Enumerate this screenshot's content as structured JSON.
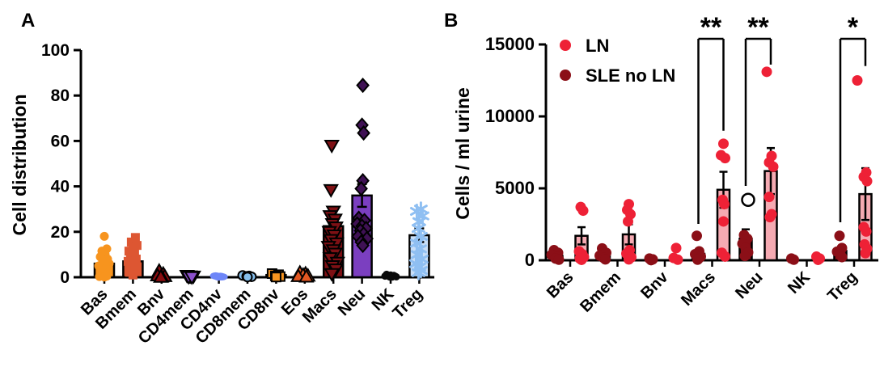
{
  "figure": {
    "background": "#FFFFFF",
    "panel_labels": [
      "A",
      "B"
    ]
  },
  "chart_data": [
    {
      "panel_label": "A",
      "type": "bar",
      "subtype": "bar-with-scatter-overlay",
      "title": "",
      "xlabel": "",
      "ylabel": "Cell distribution",
      "ylim": [
        0,
        100
      ],
      "yticks": [
        0,
        20,
        40,
        60,
        80,
        100
      ],
      "grid": false,
      "categories": [
        "Bas",
        "Bmem",
        "Bnv",
        "CD4mem",
        "CD4nv",
        "CD8mem",
        "CD8nv",
        "Eos",
        "Macs",
        "Neu",
        "NK",
        "Treg"
      ],
      "bar_values": [
        6,
        7,
        0.6,
        0.4,
        0.3,
        0.4,
        1,
        0.7,
        22.5,
        36,
        0.6,
        18.5
      ],
      "bar_errors": [
        1.8,
        1.6,
        0,
        0,
        0,
        0,
        0,
        0,
        3.5,
        5,
        0,
        3
      ],
      "bar_colors": [
        "#F7941E",
        "#DD5632",
        "#8B0E11",
        "#8C51CC",
        "#6E86F8",
        "#85BEEC",
        "#F79420",
        "#E25722",
        "#7E1014",
        "#7B3FC0",
        "#0A0A0A",
        "#C9DFF8"
      ],
      "marker_shapes": [
        "circle",
        "square",
        "triangle-up",
        "triangle-down",
        "ellipse",
        "circle",
        "square",
        "triangle-up",
        "triangle-down",
        "diamond",
        "circle-small",
        "snowflake"
      ],
      "marker_colors": [
        "#F7941E",
        "#DD5632",
        "#8B0E11",
        "#8C51CC",
        "#6E86F8",
        "#85BEEC",
        "#F79420",
        "#E25722",
        "#7E1014",
        "#3F1154",
        "#0A0A0A",
        "#8FBFF2"
      ],
      "marker_outlined": [
        false,
        false,
        true,
        true,
        false,
        true,
        true,
        true,
        true,
        true,
        false,
        false
      ],
      "scatter": [
        [
          [
            0,
            18
          ],
          [
            3,
            12.5
          ],
          [
            -3,
            11.5
          ],
          [
            1,
            10
          ],
          [
            -5,
            9
          ],
          [
            4,
            8
          ],
          [
            -2,
            7
          ],
          [
            6,
            6
          ],
          [
            -7,
            5
          ],
          [
            2,
            4
          ],
          [
            -4,
            3
          ],
          [
            5,
            2
          ],
          [
            -1,
            1.2
          ],
          [
            3,
            0.5
          ],
          [
            -6,
            0.3
          ],
          [
            0,
            0.1
          ]
        ],
        [
          [
            3,
            17.5
          ],
          [
            -2,
            15.5
          ],
          [
            5,
            14
          ],
          [
            0,
            13
          ],
          [
            -5,
            11.5
          ],
          [
            2,
            10.5
          ],
          [
            -3,
            9.5
          ],
          [
            4,
            8
          ],
          [
            -6,
            7
          ],
          [
            1,
            5.5
          ],
          [
            -2,
            4
          ],
          [
            3,
            3
          ],
          [
            -4,
            2.2
          ],
          [
            0,
            1
          ]
        ],
        [
          [
            -3,
            2.8
          ],
          [
            2,
            1.5
          ],
          [
            -5,
            0.7
          ],
          [
            4,
            0.4
          ],
          [
            0,
            0.2
          ],
          [
            -1,
            0.1
          ]
        ],
        [
          [
            -4,
            0.7
          ],
          [
            0,
            0.5
          ],
          [
            4,
            0.4
          ],
          [
            -2,
            0.2
          ],
          [
            2,
            0.1
          ]
        ],
        [
          [
            -4,
            0.6
          ],
          [
            2,
            0.4
          ],
          [
            -1,
            0.3
          ],
          [
            4,
            0.2
          ],
          [
            0,
            0.1
          ]
        ],
        [
          [
            -6,
            0.8
          ],
          [
            2,
            0.6
          ],
          [
            -1,
            0.4
          ],
          [
            5,
            0.2
          ],
          [
            0,
            0.1
          ]
        ],
        [
          [
            -5,
            1.6
          ],
          [
            3,
            1.1
          ],
          [
            -1,
            0.6
          ],
          [
            5,
            0.3
          ],
          [
            0,
            0.1
          ]
        ],
        [
          [
            -6,
            2
          ],
          [
            1,
            1.6
          ],
          [
            -2,
            1
          ],
          [
            4,
            0.6
          ],
          [
            -8,
            0.4
          ],
          [
            2,
            0.2
          ]
        ],
        [
          [
            -2,
            58
          ],
          [
            -3,
            38.5
          ],
          [
            0,
            29
          ],
          [
            -4,
            27
          ],
          [
            2,
            25.5
          ],
          [
            -1,
            23.5
          ],
          [
            3,
            22
          ],
          [
            -5,
            20
          ],
          [
            1,
            18.5
          ],
          [
            -3,
            16.5
          ],
          [
            4,
            15
          ],
          [
            -6,
            13.5
          ],
          [
            0,
            12
          ],
          [
            2,
            10.5
          ],
          [
            -4,
            8.5
          ],
          [
            5,
            6.5
          ],
          [
            -1,
            5
          ],
          [
            3,
            3.5
          ],
          [
            -2,
            1.5
          ]
        ],
        [
          [
            1,
            84.5
          ],
          [
            0,
            67
          ],
          [
            2,
            63.5
          ],
          [
            1,
            42.5
          ],
          [
            -1,
            39
          ],
          [
            -4,
            26
          ],
          [
            3,
            25
          ],
          [
            -6,
            23.5
          ],
          [
            0,
            22.5
          ],
          [
            5,
            21.5
          ],
          [
            -2,
            20.5
          ],
          [
            2,
            19
          ],
          [
            -5,
            18
          ],
          [
            6,
            17
          ],
          [
            -1,
            15.5
          ],
          [
            1,
            14
          ]
        ],
        [
          [
            -5,
            1.3
          ],
          [
            0,
            1
          ],
          [
            4,
            0.8
          ],
          [
            -7,
            0.5
          ],
          [
            6,
            0.4
          ],
          [
            -2,
            0.3
          ],
          [
            2,
            0.1
          ],
          [
            -1,
            0.1
          ],
          [
            7,
            0.2
          ]
        ],
        [
          [
            2,
            30
          ],
          [
            -3,
            29
          ],
          [
            4,
            27
          ],
          [
            0,
            24.5
          ],
          [
            -1,
            21.5
          ],
          [
            2,
            18
          ],
          [
            -3,
            15
          ],
          [
            1,
            12.5
          ],
          [
            -2,
            10
          ],
          [
            3,
            8
          ],
          [
            -4,
            6
          ],
          [
            0,
            4.5
          ],
          [
            2,
            3
          ],
          [
            -1,
            2
          ]
        ]
      ]
    },
    {
      "panel_label": "B",
      "type": "bar",
      "subtype": "grouped-bar-with-scatter-overlay",
      "title": "",
      "xlabel": "",
      "ylabel": "Cells / ml urine",
      "ylim": [
        0,
        15000
      ],
      "yticks": [
        0,
        5000,
        10000,
        15000
      ],
      "grid": false,
      "categories": [
        "Bas",
        "Bmem",
        "Bnv",
        "Macs",
        "Neu",
        "NK",
        "Treg"
      ],
      "legend": {
        "position": "top-left",
        "entries": [
          {
            "label": "LN",
            "color": "#EE2136"
          },
          {
            "label": "SLE no LN",
            "color": "#8B0F17"
          }
        ]
      },
      "series": [
        {
          "name": "SLE no LN",
          "dot_color": "#8B0F17",
          "bar_fill": "#8B0F17",
          "bar_values": [
            300,
            350,
            40,
            450,
            1500,
            30,
            650
          ],
          "bar_errors": [
            0,
            0,
            0,
            0,
            650,
            0,
            0
          ],
          "scatter": [
            [
              [
                -3,
                700
              ],
              [
                2,
                520
              ],
              [
                -6,
                380
              ],
              [
                1,
                230
              ],
              [
                -1,
                120
              ],
              [
                3,
                40
              ]
            ],
            [
              [
                -2,
                820
              ],
              [
                3,
                520
              ],
              [
                -5,
                320
              ],
              [
                0,
                160
              ],
              [
                2,
                60
              ]
            ],
            [
              [
                -2,
                120
              ],
              [
                2,
                60
              ],
              [
                0,
                10
              ]
            ],
            [
              [
                -2,
                1700
              ],
              [
                1,
                620
              ],
              [
                -4,
                420
              ],
              [
                3,
                260
              ],
              [
                0,
                100
              ],
              [
                -1,
                40
              ]
            ],
            [
              [
                -2,
                1750
              ],
              [
                2,
                1500
              ],
              [
                -4,
                1150
              ],
              [
                0,
                850
              ],
              [
                3,
                550
              ],
              [
                -1,
                300
              ]
            ],
            [
              [
                -2,
                120
              ],
              [
                1,
                40
              ]
            ],
            [
              [
                -1,
                1700
              ],
              [
                2,
                850
              ],
              [
                -4,
                600
              ],
              [
                0,
                400
              ],
              [
                2,
                220
              ]
            ]
          ]
        },
        {
          "name": "LN",
          "dot_color": "#EE2136",
          "bar_fill": "#F5AAB2",
          "bar_values": [
            1700,
            1800,
            80,
            4900,
            6200,
            60,
            4600
          ],
          "bar_errors": [
            600,
            700,
            0,
            1250,
            1600,
            0,
            1800
          ],
          "scatter": [
            [
              [
                -1,
                3700
              ],
              [
                2,
                3450
              ],
              [
                -3,
                620
              ],
              [
                1,
                420
              ],
              [
                3,
                220
              ],
              [
                -2,
                120
              ],
              [
                0,
                30
              ]
            ],
            [
              [
                0,
                3900
              ],
              [
                -2,
                3500
              ],
              [
                2,
                3200
              ],
              [
                -1,
                2700
              ],
              [
                1,
                700
              ],
              [
                -3,
                460
              ],
              [
                3,
                210
              ],
              [
                0,
                60
              ]
            ],
            [
              [
                0,
                850
              ],
              [
                -3,
                160
              ],
              [
                2,
                40
              ]
            ],
            [
              [
                0,
                8100
              ],
              [
                -3,
                7300
              ],
              [
                2,
                7100
              ],
              [
                -1,
                4200
              ],
              [
                1,
                3900
              ],
              [
                0,
                2700
              ],
              [
                -2,
                520
              ],
              [
                2,
                260
              ]
            ],
            [
              [
                -5,
                13100
              ],
              [
                1,
                7250
              ],
              [
                -2,
                6800
              ],
              [
                3,
                6500
              ],
              [
                -2,
                4400
              ],
              [
                1,
                3200
              ],
              [
                -1,
                3000
              ]
            ],
            [
              [
                -2,
                250
              ],
              [
                2,
                120
              ],
              [
                0,
                30
              ]
            ],
            [
              [
                -10,
                12500
              ],
              [
                1,
                6100
              ],
              [
                -2,
                5800
              ],
              [
                2,
                5500
              ],
              [
                -2,
                2300
              ],
              [
                1,
                2000
              ],
              [
                -1,
                1100
              ],
              [
                2,
                800
              ],
              [
                0,
                500
              ]
            ]
          ]
        }
      ],
      "outlier_open_circle": {
        "category": "Neu",
        "series": "SLE no LN",
        "value": 4200
      },
      "significance": [
        {
          "category": "Macs",
          "label": "**",
          "arm_left_to": 2530,
          "arm_right_to": 9000
        },
        {
          "category": "Neu",
          "label": "**",
          "arm_left_to": 5170,
          "arm_right_to": 13600
        },
        {
          "category": "Treg",
          "label": "*",
          "arm_left_to": 2640,
          "arm_right_to": 13500
        }
      ]
    }
  ]
}
